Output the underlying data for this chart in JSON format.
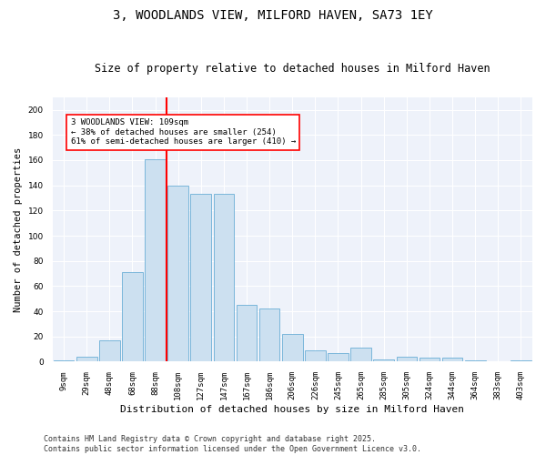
{
  "title1": "3, WOODLANDS VIEW, MILFORD HAVEN, SA73 1EY",
  "title2": "Size of property relative to detached houses in Milford Haven",
  "xlabel": "Distribution of detached houses by size in Milford Haven",
  "ylabel": "Number of detached properties",
  "categories": [
    "9sqm",
    "29sqm",
    "48sqm",
    "68sqm",
    "88sqm",
    "108sqm",
    "127sqm",
    "147sqm",
    "167sqm",
    "186sqm",
    "206sqm",
    "226sqm",
    "245sqm",
    "265sqm",
    "285sqm",
    "305sqm",
    "324sqm",
    "344sqm",
    "364sqm",
    "383sqm",
    "403sqm"
  ],
  "values": [
    1,
    4,
    17,
    71,
    161,
    140,
    133,
    133,
    45,
    42,
    22,
    9,
    7,
    11,
    2,
    4,
    3,
    3,
    1,
    0,
    1
  ],
  "bar_color": "#cce0f0",
  "bar_edge_color": "#6aaed6",
  "red_line_index": 4.5,
  "annotation_text": "3 WOODLANDS VIEW: 109sqm\n← 38% of detached houses are smaller (254)\n61% of semi-detached houses are larger (410) →",
  "ylim": [
    0,
    210
  ],
  "yticks": [
    0,
    20,
    40,
    60,
    80,
    100,
    120,
    140,
    160,
    180,
    200
  ],
  "plot_bg_color": "#eef2fa",
  "footer": "Contains HM Land Registry data © Crown copyright and database right 2025.\nContains public sector information licensed under the Open Government Licence v3.0.",
  "title1_fontsize": 10,
  "title2_fontsize": 8.5,
  "xlabel_fontsize": 8,
  "ylabel_fontsize": 7.5,
  "annotation_fontsize": 6.5,
  "tick_fontsize": 6.5,
  "footer_fontsize": 6
}
